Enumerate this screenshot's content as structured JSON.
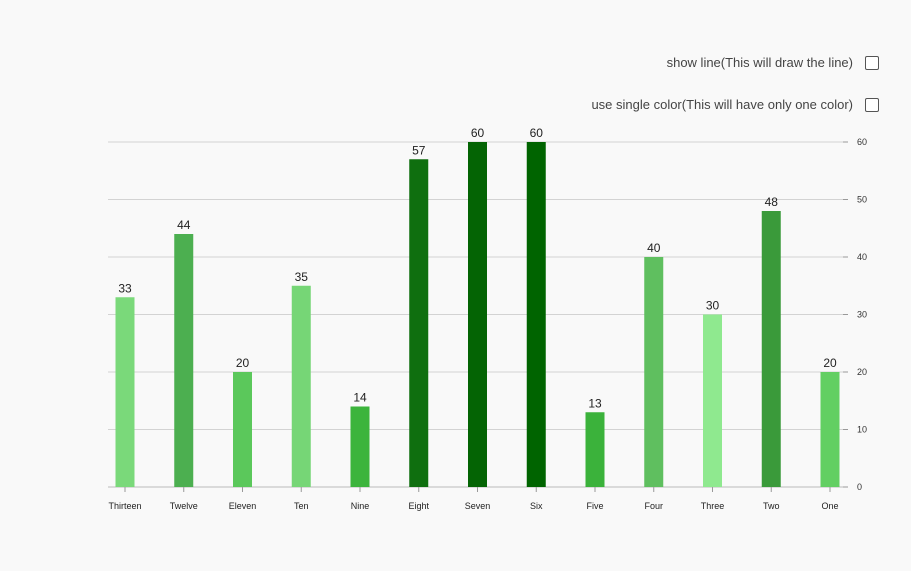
{
  "options": {
    "show_line_label": "show line(This will draw the line)",
    "single_color_label": "use single color(This will have only one color)"
  },
  "chart_data": {
    "type": "bar",
    "categories": [
      "Thirteen",
      "Twelve",
      "Eleven",
      "Ten",
      "Nine",
      "Eight",
      "Seven",
      "Six",
      "Five",
      "Four",
      "Three",
      "Two",
      "One"
    ],
    "values": [
      33,
      44,
      20,
      35,
      14,
      57,
      60,
      60,
      13,
      40,
      30,
      48,
      20
    ],
    "colors": [
      "#7ad97a",
      "#4caf50",
      "#5bc85b",
      "#76d676",
      "#3cb43c",
      "#0f6f0f",
      "#046404",
      "#006400",
      "#3bb23b",
      "#5fbf5f",
      "#8fe98f",
      "#3a9a3a",
      "#62cf62"
    ],
    "title": "",
    "xlabel": "",
    "ylabel": "",
    "ylim": [
      0,
      60
    ],
    "yticks": [
      0,
      10,
      20,
      30,
      40,
      50,
      60
    ],
    "y_axis_side": "right",
    "grid": true
  }
}
